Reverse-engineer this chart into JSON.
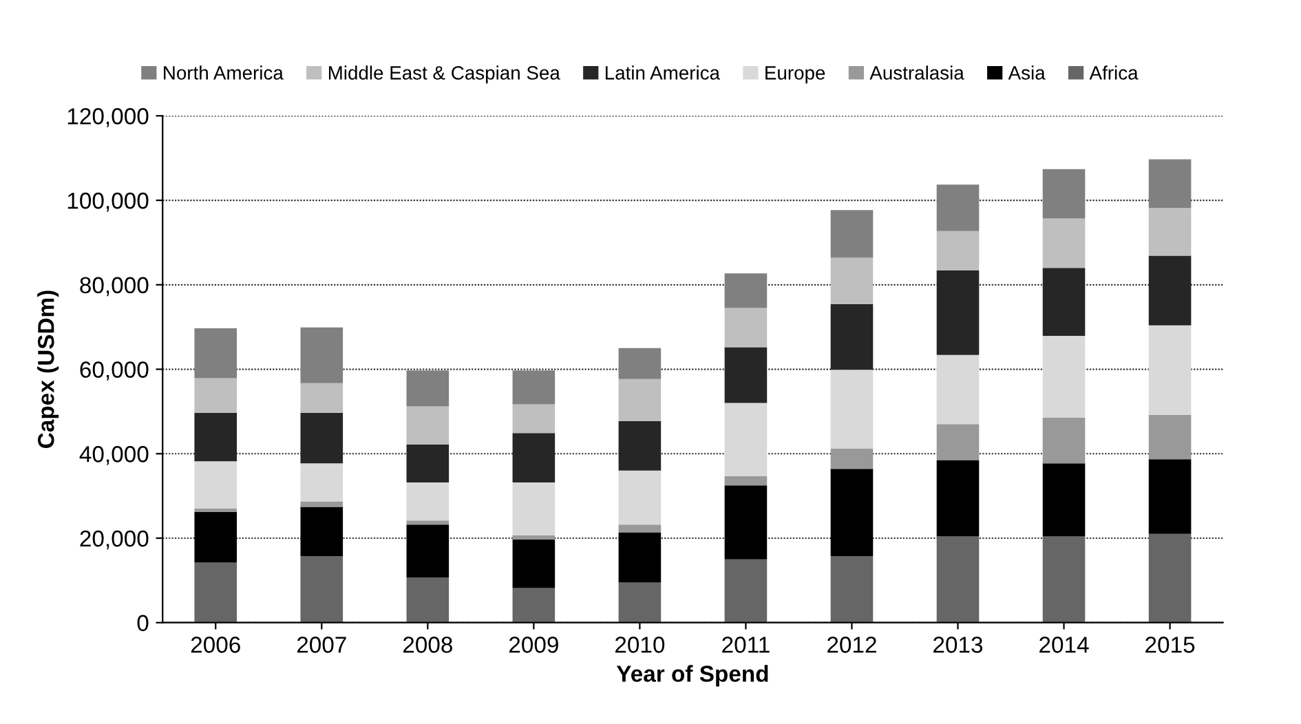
{
  "chart_data": {
    "type": "bar",
    "stacked": true,
    "xlabel": "Year of Spend",
    "ylabel": "Capex (USDm)",
    "categories": [
      "2006",
      "2007",
      "2008",
      "2009",
      "2010",
      "2011",
      "2012",
      "2013",
      "2014",
      "2015"
    ],
    "series": [
      {
        "name": "Africa",
        "color": "#666666",
        "values": [
          14200,
          15700,
          10700,
          8200,
          9500,
          15000,
          15700,
          20400,
          20400,
          21000
        ]
      },
      {
        "name": "Asia",
        "color": "#000000",
        "values": [
          12000,
          11700,
          12500,
          11500,
          11900,
          17500,
          20700,
          18100,
          17300,
          17700
        ]
      },
      {
        "name": "Australasia",
        "color": "#999999",
        "values": [
          800,
          1300,
          1000,
          1000,
          1800,
          2200,
          4800,
          8500,
          10800,
          10500
        ]
      },
      {
        "name": "Europe",
        "color": "#d9d9d9",
        "values": [
          11200,
          9000,
          9000,
          12500,
          12800,
          17300,
          18700,
          16400,
          19400,
          21200
        ]
      },
      {
        "name": "Latin America",
        "color": "#262626",
        "values": [
          11500,
          12000,
          9000,
          11700,
          11700,
          13200,
          15500,
          20000,
          16100,
          16500
        ]
      },
      {
        "name": "Middle East & Caspian Sea",
        "color": "#bfbfbf",
        "values": [
          8200,
          7000,
          9000,
          6800,
          10000,
          9300,
          11000,
          9300,
          11700,
          11300
        ]
      },
      {
        "name": "North America",
        "color": "#808080",
        "values": [
          11800,
          13200,
          8500,
          8000,
          7300,
          8200,
          11300,
          11000,
          11700,
          11500
        ]
      }
    ],
    "ylim": [
      0,
      120000
    ],
    "yticks": [
      0,
      {
        "value": 20000,
        "label": "20,000"
      },
      {
        "value": 40000,
        "label": "40,000"
      },
      {
        "value": 60000,
        "label": "60,000"
      },
      {
        "value": 80000,
        "label": "80,000"
      },
      {
        "value": 100000,
        "label": "100,000"
      },
      {
        "value": 120000,
        "label": "120,000"
      }
    ],
    "grid": "y",
    "legend": "top"
  }
}
